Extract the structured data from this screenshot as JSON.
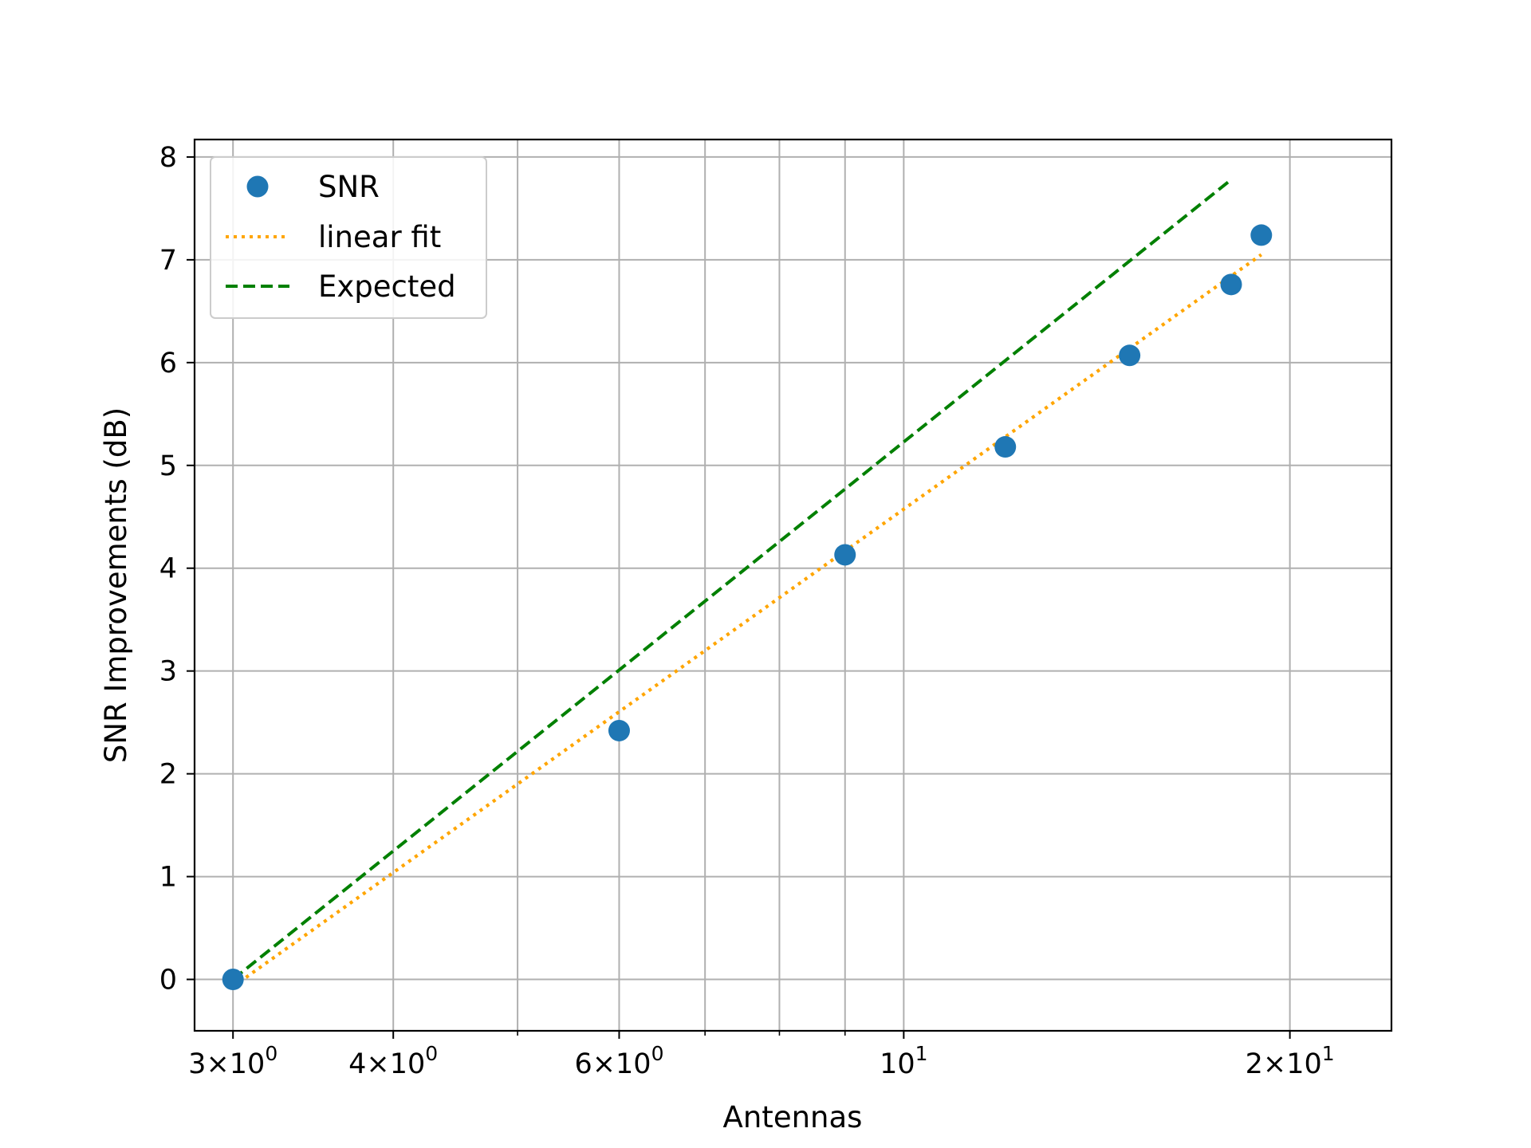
{
  "chart_data": {
    "type": "scatter",
    "title": "",
    "xlabel": "Antennas",
    "ylabel": "SNR Improvements (dB)",
    "xscale": "log",
    "xlim": [
      2.8,
      24.0
    ],
    "ylim": [
      -0.5,
      8.17
    ],
    "grid": true,
    "legend_position": "top-left",
    "x_ticks": [
      {
        "value": 3,
        "mantissa": "3",
        "base": "10",
        "exp": "0"
      },
      {
        "value": 4,
        "mantissa": "4",
        "base": "10",
        "exp": "0"
      },
      {
        "value": 6,
        "mantissa": "6",
        "base": "10",
        "exp": "0"
      },
      {
        "value": 10,
        "mantissa": "",
        "base": "10",
        "exp": "1"
      },
      {
        "value": 20,
        "mantissa": "2",
        "base": "10",
        "exp": "1"
      }
    ],
    "x_minor_ticks": [
      5,
      7,
      8,
      9
    ],
    "y_ticks": [
      0,
      1,
      2,
      3,
      4,
      5,
      6,
      7,
      8
    ],
    "series": [
      {
        "name": "SNR",
        "kind": "scatter",
        "color": "#1f77b4",
        "points": [
          [
            3,
            0.0
          ],
          [
            6,
            2.42
          ],
          [
            9,
            4.13
          ],
          [
            12,
            5.18
          ],
          [
            15,
            6.07
          ],
          [
            18,
            6.76
          ],
          [
            19,
            7.24
          ]
        ]
      },
      {
        "name": "linear fit",
        "kind": "line",
        "style": "dotted",
        "color": "#ffa500",
        "points": [
          [
            3,
            -0.07
          ],
          [
            19,
            7.05
          ]
        ]
      },
      {
        "name": "Expected",
        "kind": "line",
        "style": "dashed",
        "color": "#008000",
        "points": [
          [
            3,
            0.0
          ],
          [
            18,
            7.78
          ]
        ]
      }
    ]
  }
}
